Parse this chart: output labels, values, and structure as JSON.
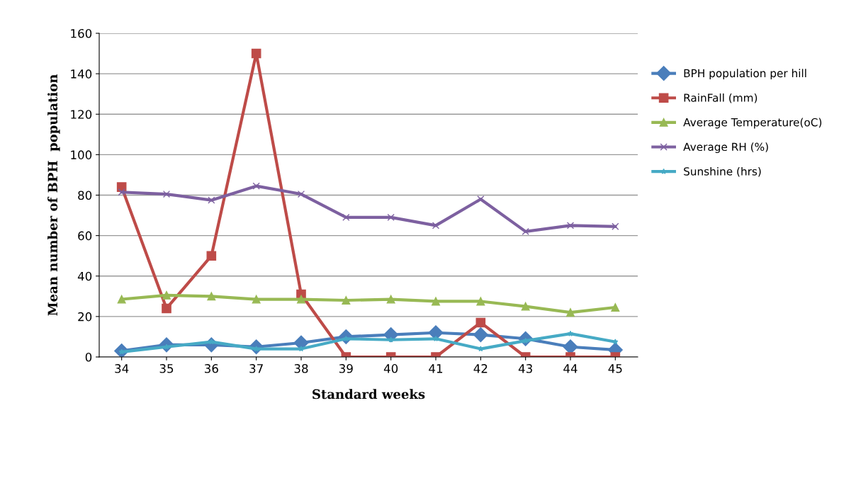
{
  "chart_data": {
    "type": "line",
    "xlabel": "Standard weeks",
    "ylabel": "Mean number of BPH  population",
    "categories": [
      "34",
      "35",
      "36",
      "37",
      "38",
      "39",
      "40",
      "41",
      "42",
      "43",
      "44",
      "45"
    ],
    "series": [
      {
        "name": "BPH population per hill",
        "color": "#4a7ebb",
        "marker": "diamond",
        "values": [
          3,
          6,
          6,
          5,
          7,
          10,
          11,
          12,
          11,
          9,
          5,
          3.5
        ]
      },
      {
        "name": "RainFall (mm)",
        "color": "#be4b48",
        "marker": "square",
        "values": [
          84,
          24,
          50,
          150,
          31,
          0,
          0,
          0,
          17,
          0,
          0,
          0
        ]
      },
      {
        "name": "Average Temperature(oC)",
        "color": "#98b954",
        "marker": "triangle",
        "values": [
          28.5,
          30.5,
          30,
          28.5,
          28.5,
          28,
          28.5,
          27.5,
          27.5,
          25,
          22,
          24.5
        ]
      },
      {
        "name": "Average RH (%)",
        "color": "#7d60a0",
        "marker": "cross",
        "values": [
          81.5,
          80.5,
          77.5,
          84.5,
          80.5,
          69,
          69,
          65,
          78,
          62,
          65,
          64.5
        ]
      },
      {
        "name": "Sunshine (hrs)",
        "color": "#46aac5",
        "marker": "star",
        "values": [
          2.5,
          5,
          7.5,
          4,
          4,
          9,
          8.5,
          9,
          4,
          8,
          11.5,
          7.5
        ]
      }
    ],
    "ylim": [
      0,
      160
    ],
    "yticks": [
      0,
      20,
      40,
      60,
      80,
      100,
      120,
      140,
      160
    ],
    "grid": "y",
    "legend": "right"
  }
}
